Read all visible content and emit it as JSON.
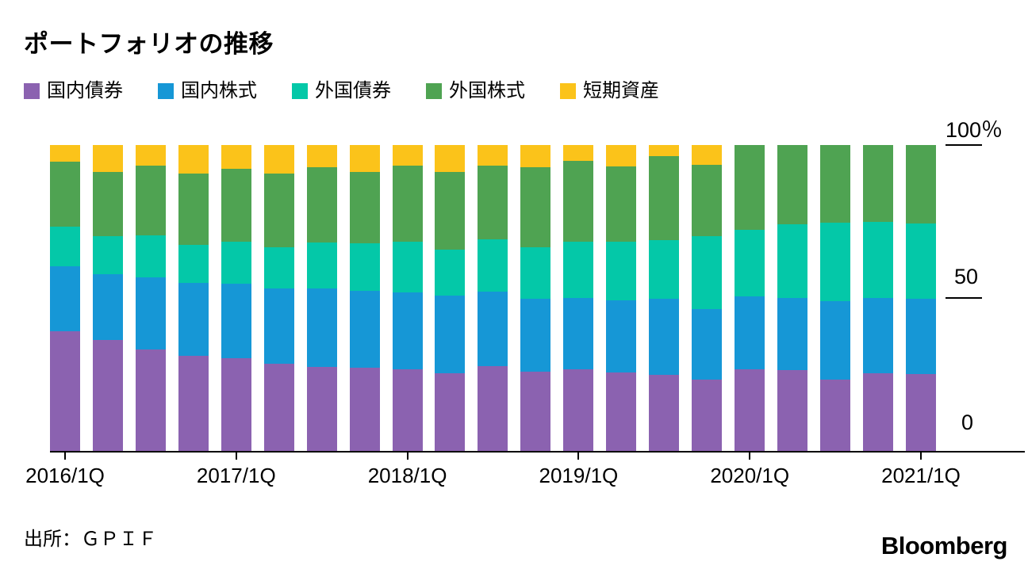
{
  "title": "ポートフォリオの推移",
  "source": "出所：ＧＰＩＦ",
  "brand": "Bloomberg",
  "axis": {
    "y_ticks": [
      {
        "label": "100％",
        "value": 100
      },
      {
        "label": "50",
        "value": 50
      },
      {
        "label": "0",
        "value": 0
      }
    ],
    "x_ticks": [
      {
        "index": 0,
        "label": "2016/1Q"
      },
      {
        "index": 4,
        "label": "2017/1Q"
      },
      {
        "index": 8,
        "label": "2018/1Q"
      },
      {
        "index": 12,
        "label": "2019/1Q"
      },
      {
        "index": 16,
        "label": "2020/1Q"
      },
      {
        "index": 20,
        "label": "2021/1Q"
      }
    ]
  },
  "chart_data": {
    "type": "bar",
    "stacked": true,
    "title": "ポートフォリオの推移",
    "xlabel": "",
    "ylabel": "％",
    "ylim": [
      0,
      100
    ],
    "grid": false,
    "legend_position": "top",
    "categories": [
      "2016/1Q",
      "2016/2Q",
      "2016/3Q",
      "2016/4Q",
      "2017/1Q",
      "2017/2Q",
      "2017/3Q",
      "2017/4Q",
      "2018/1Q",
      "2018/2Q",
      "2018/3Q",
      "2018/4Q",
      "2019/1Q",
      "2019/2Q",
      "2019/3Q",
      "2019/4Q",
      "2020/1Q",
      "2020/2Q",
      "2020/3Q",
      "2020/4Q",
      "2021/1Q"
    ],
    "series": [
      {
        "name": "国内債券",
        "color": "#8b62b0",
        "values": [
          39.2,
          36.2,
          33.1,
          31.0,
          30.2,
          28.5,
          27.5,
          27.3,
          26.8,
          25.3,
          27.6,
          25.9,
          26.8,
          25.7,
          24.9,
          23.3,
          26.6,
          26.4,
          23.2,
          25.5,
          25.1
        ]
      },
      {
        "name": "国内株式",
        "color": "#1697d6",
        "values": [
          21.1,
          21.6,
          23.7,
          24.0,
          24.5,
          24.5,
          25.6,
          25.1,
          25.0,
          25.5,
          24.5,
          23.9,
          23.3,
          23.5,
          24.9,
          23.2,
          23.8,
          23.7,
          25.7,
          24.6,
          24.7
        ]
      },
      {
        "name": "外国債券",
        "color": "#04c8a8",
        "values": [
          12.9,
          12.5,
          13.6,
          12.3,
          13.6,
          13.5,
          15.0,
          15.5,
          16.5,
          15.0,
          17.0,
          16.7,
          18.4,
          19.1,
          19.2,
          23.7,
          22.0,
          24.0,
          25.7,
          24.9,
          24.5
        ]
      },
      {
        "name": "外国株式",
        "color": "#4fa352",
        "values": [
          21.3,
          21.0,
          22.9,
          23.3,
          24.0,
          24.2,
          24.6,
          23.3,
          25.0,
          25.4,
          24.2,
          26.2,
          26.4,
          24.8,
          27.4,
          23.4,
          27.6,
          25.9,
          25.4,
          25.0,
          25.7
        ]
      },
      {
        "name": "短期資産",
        "color": "#fbc31a",
        "values": [
          5.5,
          8.7,
          6.7,
          9.4,
          7.7,
          9.3,
          7.3,
          8.8,
          6.7,
          8.8,
          6.7,
          7.3,
          5.1,
          6.9,
          3.6,
          6.4,
          0,
          0,
          0,
          0,
          0
        ]
      }
    ]
  }
}
